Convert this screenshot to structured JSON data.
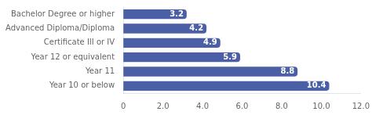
{
  "chart_data": {
    "type": "bar",
    "orientation": "horizontal",
    "categories": [
      "Bachelor Degree or higher",
      "Advanced Diploma/Diploma",
      "Certificate III or IV",
      "Year 12 or equivalent",
      "Year 11",
      "Year 10 or below"
    ],
    "values": [
      3.2,
      4.2,
      4.9,
      5.9,
      8.8,
      10.4
    ],
    "color": "#4a5fa5",
    "xlim": [
      0,
      12.0
    ],
    "xticks": [
      0,
      {
        "value": 2.0,
        "label": "2.0"
      },
      {
        "value": 4.0,
        "label": "4.0"
      },
      {
        "value": 6.0,
        "label": "6.0"
      },
      {
        "value": 8.0,
        "label": "8.0"
      },
      {
        "value": 10.0,
        "label": "10.0"
      },
      {
        "value": 12.0,
        "label": "12.0"
      }
    ],
    "grid": false,
    "data_labels": true
  }
}
